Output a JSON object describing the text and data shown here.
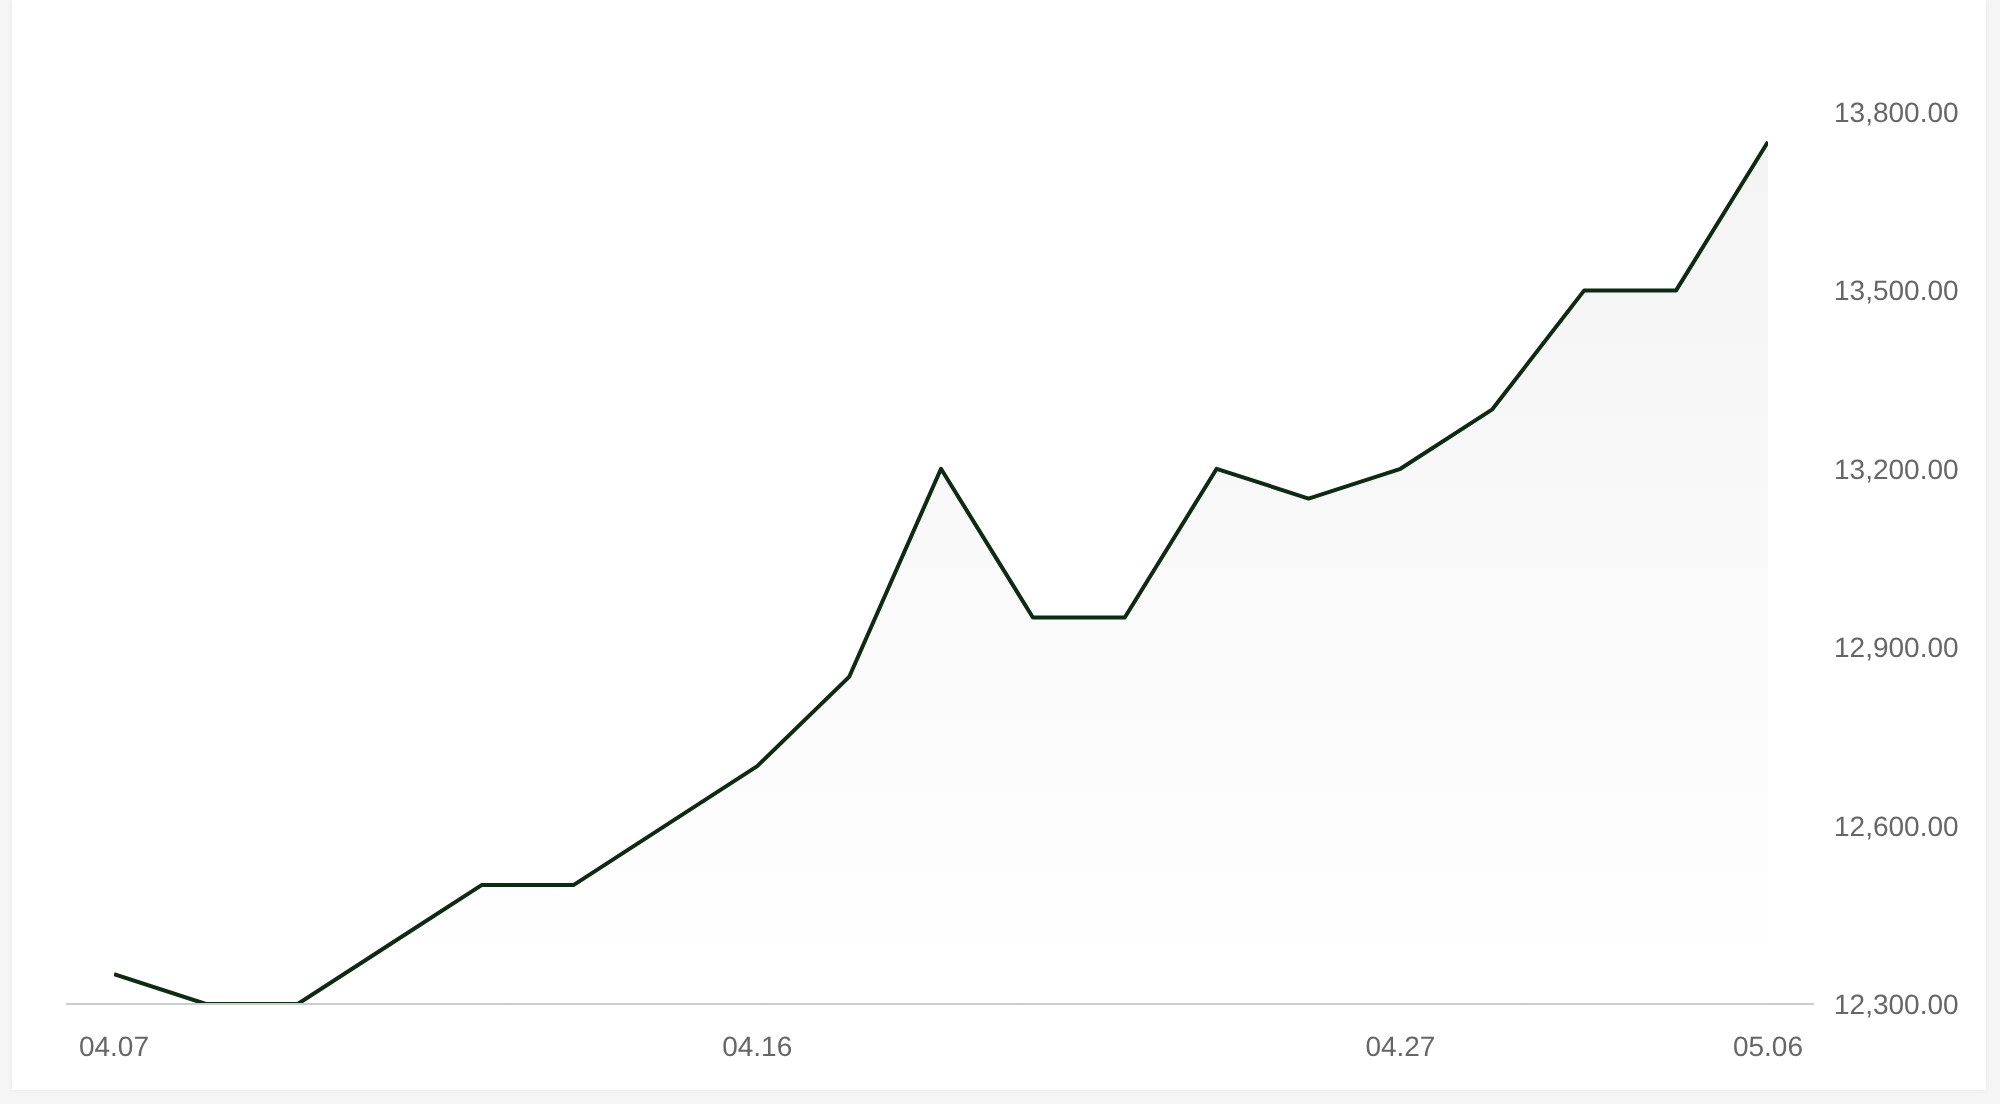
{
  "chart_data": {
    "type": "area",
    "categories": [
      "04.07",
      null,
      null,
      null,
      null,
      null,
      null,
      "04.16",
      null,
      null,
      null,
      null,
      null,
      null,
      "04.27",
      null,
      null,
      null,
      "05.06"
    ],
    "values": [
      12350,
      12300,
      12300,
      12400,
      12500,
      12500,
      12600,
      12700,
      12850,
      13200,
      12950,
      12950,
      13200,
      13150,
      13200,
      13300,
      13500,
      13500,
      13750
    ],
    "color": "#0f2a12",
    "ylim": [
      12300,
      13800
    ],
    "yticks": [
      {
        "value": 12300,
        "label": "12,300.00"
      },
      {
        "value": 12600,
        "label": "12,600.00"
      },
      {
        "value": 12900,
        "label": "12,900.00"
      },
      {
        "value": 13200,
        "label": "13,200.00"
      },
      {
        "value": 13500,
        "label": "13,500.00"
      },
      {
        "value": 13800,
        "label": "13,800.00"
      }
    ],
    "grid": false,
    "marker": "none"
  }
}
